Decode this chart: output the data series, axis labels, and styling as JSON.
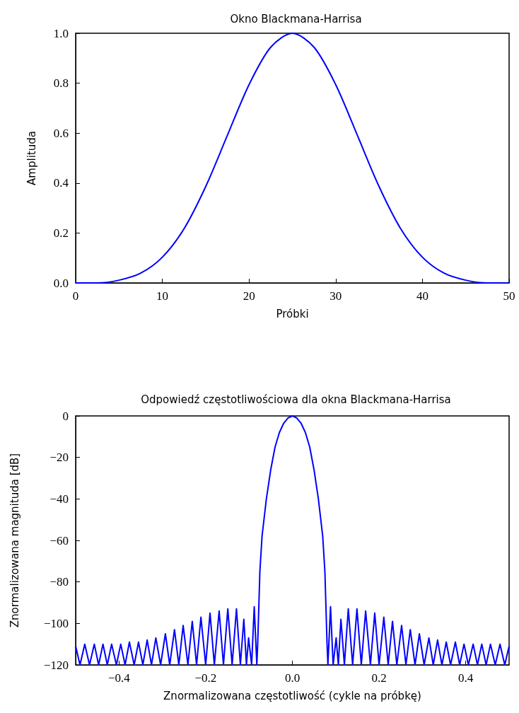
{
  "chart_data": [
    {
      "type": "line",
      "title": "Okno Blackmana-Harrisa",
      "xlabel": "Próbki",
      "ylabel": "Amplituda",
      "x": [
        0,
        2.5,
        5,
        7.5,
        10,
        12.5,
        15,
        17.5,
        20,
        22.5,
        25,
        27.5,
        30,
        32.5,
        35,
        37.5,
        40,
        42.5,
        45,
        47.5,
        50
      ],
      "series": [
        {
          "color": "#0000ff",
          "values": [
            0,
            0,
            0.011,
            0.039,
            0.103,
            0.217,
            0.386,
            0.591,
            0.794,
            0.944,
            1.0,
            0.944,
            0.794,
            0.591,
            0.386,
            0.217,
            0.103,
            0.039,
            0.011,
            0,
            0
          ]
        }
      ],
      "xlim": [
        0,
        50
      ],
      "ylim": [
        0,
        1
      ],
      "xticks": [
        0,
        10,
        20,
        30,
        40,
        50
      ],
      "yticks": [
        {
          "value": 0,
          "label": "0.0"
        },
        {
          "value": 0.2,
          "label": "0.2"
        },
        {
          "value": 0.4,
          "label": "0.4"
        },
        {
          "value": 0.6,
          "label": "0.6"
        },
        {
          "value": 0.8,
          "label": "0.8"
        },
        {
          "value": 1,
          "label": "1.0"
        }
      ]
    },
    {
      "type": "line",
      "title": "Odpowiedź częstotliwościowa dla okna Blackmana-Harrisa",
      "xlabel": "Znormalizowana częstotliwość (cykle na próbkę)",
      "ylabel": "Znormalizowana magnituda [dB]",
      "x": [
        -0.5,
        -0.49,
        -0.479,
        -0.468,
        -0.457,
        -0.447,
        -0.437,
        -0.427,
        -0.417,
        -0.406,
        -0.396,
        -0.386,
        -0.376,
        -0.365,
        -0.355,
        -0.345,
        -0.335,
        -0.325,
        -0.315,
        -0.304,
        -0.293,
        -0.283,
        -0.272,
        -0.262,
        -0.252,
        -0.241,
        -0.231,
        -0.221,
        -0.211,
        -0.2,
        -0.19,
        -0.18,
        -0.169,
        -0.159,
        -0.149,
        -0.139,
        -0.129,
        -0.12,
        -0.112,
        -0.106,
        -0.101,
        -0.094,
        -0.088,
        -0.082,
        -0.08,
        -0.075,
        -0.07,
        -0.06,
        -0.05,
        -0.04,
        -0.03,
        -0.02,
        -0.01,
        0,
        0.01,
        0.02,
        0.03,
        0.04,
        0.05,
        0.06,
        0.07,
        0.075,
        0.08,
        0.082,
        0.088,
        0.094,
        0.101,
        0.106,
        0.112,
        0.12,
        0.129,
        0.139,
        0.149,
        0.159,
        0.169,
        0.18,
        0.19,
        0.2,
        0.211,
        0.221,
        0.231,
        0.241,
        0.252,
        0.262,
        0.272,
        0.283,
        0.293,
        0.304,
        0.315,
        0.325,
        0.335,
        0.345,
        0.355,
        0.365,
        0.376,
        0.386,
        0.396,
        0.406,
        0.417,
        0.427,
        0.437,
        0.447,
        0.457,
        0.468,
        0.479,
        0.49,
        0.5
      ],
      "series": [
        {
          "color": "#0000ff",
          "values": [
            -111,
            -120,
            -110,
            -120,
            -110,
            -120,
            -110,
            -120,
            -110,
            -120,
            -110,
            -120,
            -109,
            -120,
            -109,
            -120,
            -108,
            -120,
            -107,
            -120,
            -105,
            -120,
            -103,
            -120,
            -101,
            -120,
            -99,
            -120,
            -97,
            -120,
            -95,
            -120,
            -94,
            -120,
            -93,
            -120,
            -93,
            -120,
            -98,
            -120,
            -107,
            -120,
            -92,
            -120,
            -110,
            -75,
            -58,
            -40,
            -26,
            -15,
            -8,
            -3.5,
            -1,
            0,
            -1,
            -3.5,
            -8,
            -15,
            -26,
            -40,
            -58,
            -75,
            -110,
            -120,
            -92,
            -120,
            -107,
            -120,
            -98,
            -120,
            -93,
            -120,
            -93,
            -120,
            -94,
            -120,
            -95,
            -120,
            -97,
            -120,
            -99,
            -120,
            -101,
            -120,
            -103,
            -120,
            -105,
            -120,
            -107,
            -120,
            -108,
            -120,
            -109,
            -120,
            -109,
            -120,
            -110,
            -120,
            -110,
            -120,
            -110,
            -120,
            -110,
            -120,
            -110,
            -120,
            -111
          ]
        }
      ],
      "xlim": [
        -0.5,
        0.5
      ],
      "ylim": [
        -120,
        0
      ],
      "xticks": [
        {
          "value": -0.4,
          "label": "−0.4"
        },
        {
          "value": -0.2,
          "label": "−0.2"
        },
        {
          "value": 0,
          "label": "0.0"
        },
        {
          "value": 0.2,
          "label": "0.2"
        },
        {
          "value": 0.4,
          "label": "0.4"
        }
      ],
      "yticks": [
        {
          "value": -120,
          "label": "−120"
        },
        {
          "value": -100,
          "label": "−100"
        },
        {
          "value": -80,
          "label": "−80"
        },
        {
          "value": -60,
          "label": "−60"
        },
        {
          "value": -40,
          "label": "−40"
        },
        {
          "value": -20,
          "label": "−20"
        },
        0
      ]
    }
  ]
}
